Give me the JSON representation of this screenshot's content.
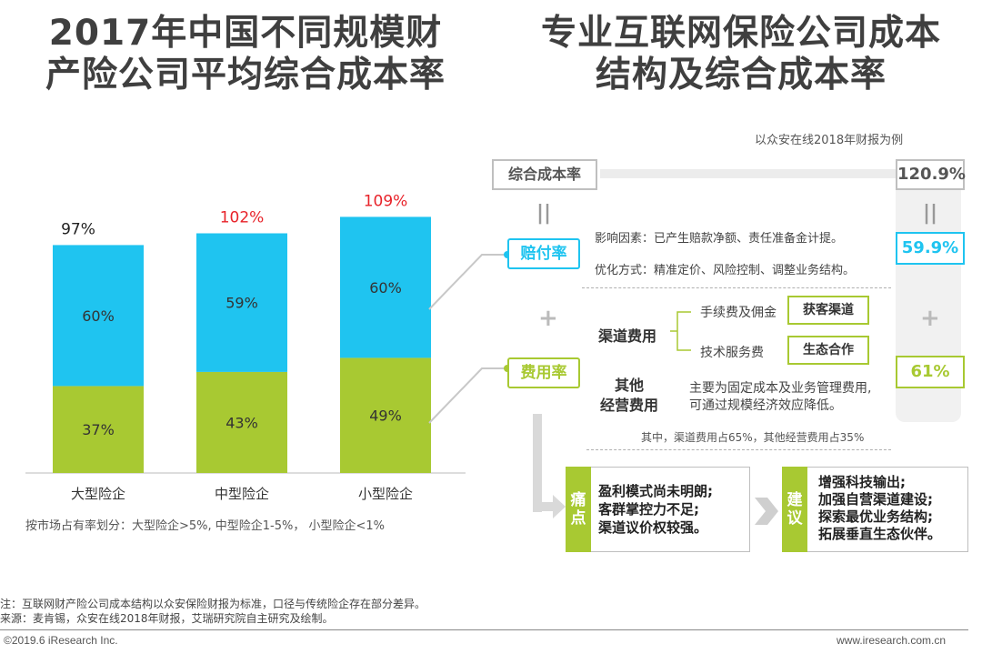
{
  "left_title": [
    "2017年中国不同规模财",
    "产险公司平均综合成本率"
  ],
  "right_title": [
    "专业互联网保险公司成本",
    "结构及综合成本率"
  ],
  "chart_data": {
    "type": "bar",
    "stacked": true,
    "categories": [
      "大型险企",
      "中型险企",
      "小型险企"
    ],
    "series": [
      {
        "name": "",
        "values": [
          37,
          43,
          49
        ],
        "labels": [
          "37%",
          "43%",
          "49%"
        ],
        "color": "#a8c932"
      },
      {
        "name": "",
        "values": [
          60,
          59,
          60
        ],
        "labels": [
          "60%",
          "59%",
          "60%"
        ],
        "color": "#1fc4f0"
      }
    ],
    "totals": [
      97,
      102,
      109
    ],
    "total_labels": [
      "97%",
      "102%",
      "109%"
    ],
    "total_colors": [
      "#222222",
      "#e8232a",
      "#e8232a"
    ],
    "ylim": [
      0,
      120
    ],
    "grid": false,
    "legend": "none",
    "title": "",
    "xlabel": "",
    "ylabel": ""
  },
  "chart_note": "按市场占有率划分：大型险企>5%, 中型险企1-5%， 小型险企<1%",
  "example_note": "以众安在线2018年财报为例",
  "combined": {
    "label": "综合成本率",
    "value": "120.9%",
    "equals": "||"
  },
  "claims": {
    "label": "赔付率",
    "value": "59.9%",
    "factors": "影响因素：已产生赔款净额、责任准备金计提。",
    "optimize": "优化方式：精准定价、风险控制、调整业务结构。"
  },
  "plus": "+",
  "expense": {
    "label": "费用率",
    "value": "61%",
    "channel_label": "渠道费用",
    "commission": "手续费及佣金",
    "commission_tag": "获客渠道",
    "tech": "技术服务费",
    "tech_tag": "生态合作",
    "other_label": [
      "其他",
      "经营费用"
    ],
    "other_desc": [
      "主要为固定成本及业务管理费用,",
      "可通过规模经济效应降低。"
    ],
    "share_note": "其中，渠道费用占65%，其他经营费用占35%"
  },
  "pain": {
    "tag": [
      "痛",
      "点"
    ],
    "items": [
      "盈利模式尚未明朗;",
      "客群掌控力不足;",
      "渠道议价权较强。"
    ]
  },
  "suggest": {
    "tag": [
      "建",
      "议"
    ],
    "items": [
      "增强科技输出;",
      "加强自营渠道建设;",
      "探索最优业务结构;",
      "拓展垂直生态伙伴。"
    ]
  },
  "footer": {
    "note": "注：互联网财产险公司成本结构以众安保险财报为标准，口径与传统险企存在部分差异。",
    "source": "来源：麦肯锡，众安在线2018年财报，艾瑞研究院自主研究及绘制。",
    "copyright": "©2019.6 iResearch Inc.",
    "website": "www.iresearch.com.cn"
  }
}
